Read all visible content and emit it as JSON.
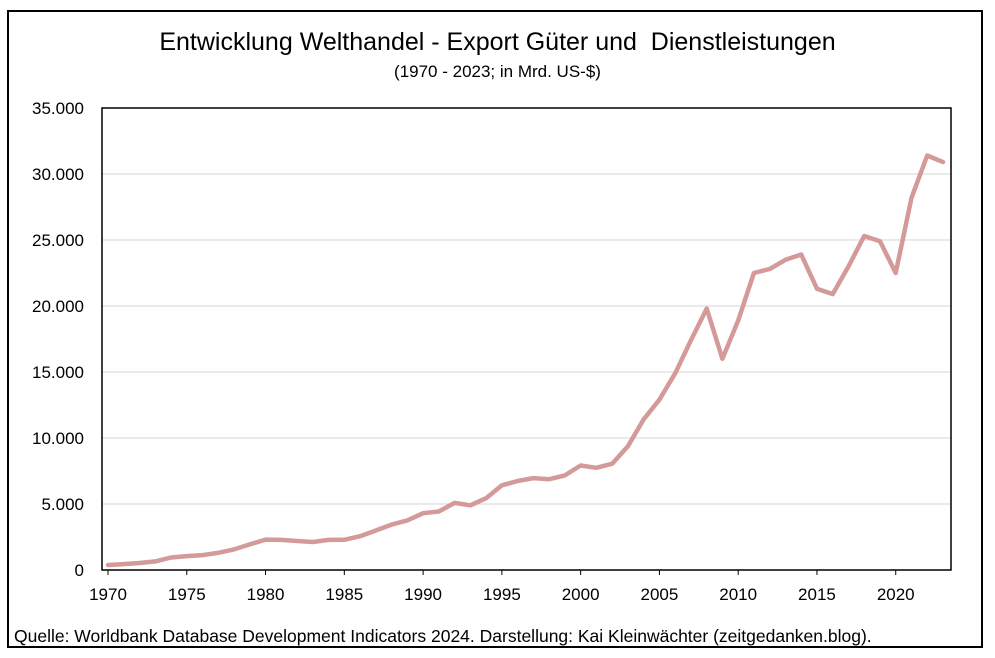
{
  "chart_data": {
    "type": "line",
    "title": "Entwicklung Welthandel - Export Güter und  Dienstleistungen",
    "subtitle": "(1970 - 2023; in Mrd. US-$)",
    "xlabel": "",
    "ylabel": "",
    "xlim": [
      1970,
      2023
    ],
    "ylim": [
      0,
      35000
    ],
    "grid": true,
    "line_color": "#d49a9a",
    "x_ticks": [
      1970,
      1975,
      1980,
      1985,
      1990,
      1995,
      2000,
      2005,
      2010,
      2015,
      2020
    ],
    "x_tick_labels": [
      "1970",
      "1975",
      "1980",
      "1985",
      "1990",
      "1995",
      "2000",
      "2005",
      "2010",
      "2015",
      "2020"
    ],
    "y_ticks": [
      0,
      5000,
      10000,
      15000,
      20000,
      25000,
      30000,
      35000
    ],
    "y_tick_labels": [
      "0",
      "5.000",
      "10.000",
      "15.000",
      "20.000",
      "25.000",
      "30.000",
      "35.000"
    ],
    "series": [
      {
        "name": "Export Güter und Dienstleistungen",
        "x": [
          1970,
          1971,
          1972,
          1973,
          1974,
          1975,
          1976,
          1977,
          1978,
          1979,
          1980,
          1981,
          1982,
          1983,
          1984,
          1985,
          1986,
          1987,
          1988,
          1989,
          1990,
          1991,
          1992,
          1993,
          1994,
          1995,
          1996,
          1997,
          1998,
          1999,
          2000,
          2001,
          2002,
          2003,
          2004,
          2005,
          2006,
          2007,
          2008,
          2009,
          2010,
          2011,
          2012,
          2013,
          2014,
          2015,
          2016,
          2017,
          2018,
          2019,
          2020,
          2021,
          2022,
          2023
        ],
        "values": [
          380,
          450,
          530,
          650,
          950,
          1050,
          1130,
          1300,
          1560,
          1940,
          2300,
          2280,
          2200,
          2120,
          2280,
          2290,
          2560,
          2990,
          3440,
          3760,
          4300,
          4430,
          5080,
          4900,
          5440,
          6420,
          6740,
          6960,
          6880,
          7170,
          7920,
          7740,
          8050,
          9370,
          11420,
          12900,
          14900,
          17400,
          19800,
          16000,
          18900,
          22500,
          22800,
          23500,
          23900,
          21300,
          20900,
          23000,
          25300,
          24900,
          22500,
          28200,
          31400,
          30900
        ]
      }
    ]
  },
  "source": "Quelle: Worldbank Database Development Indicators 2024. Darstellung: Kai Kleinwächter (zeitgedanken.blog)."
}
